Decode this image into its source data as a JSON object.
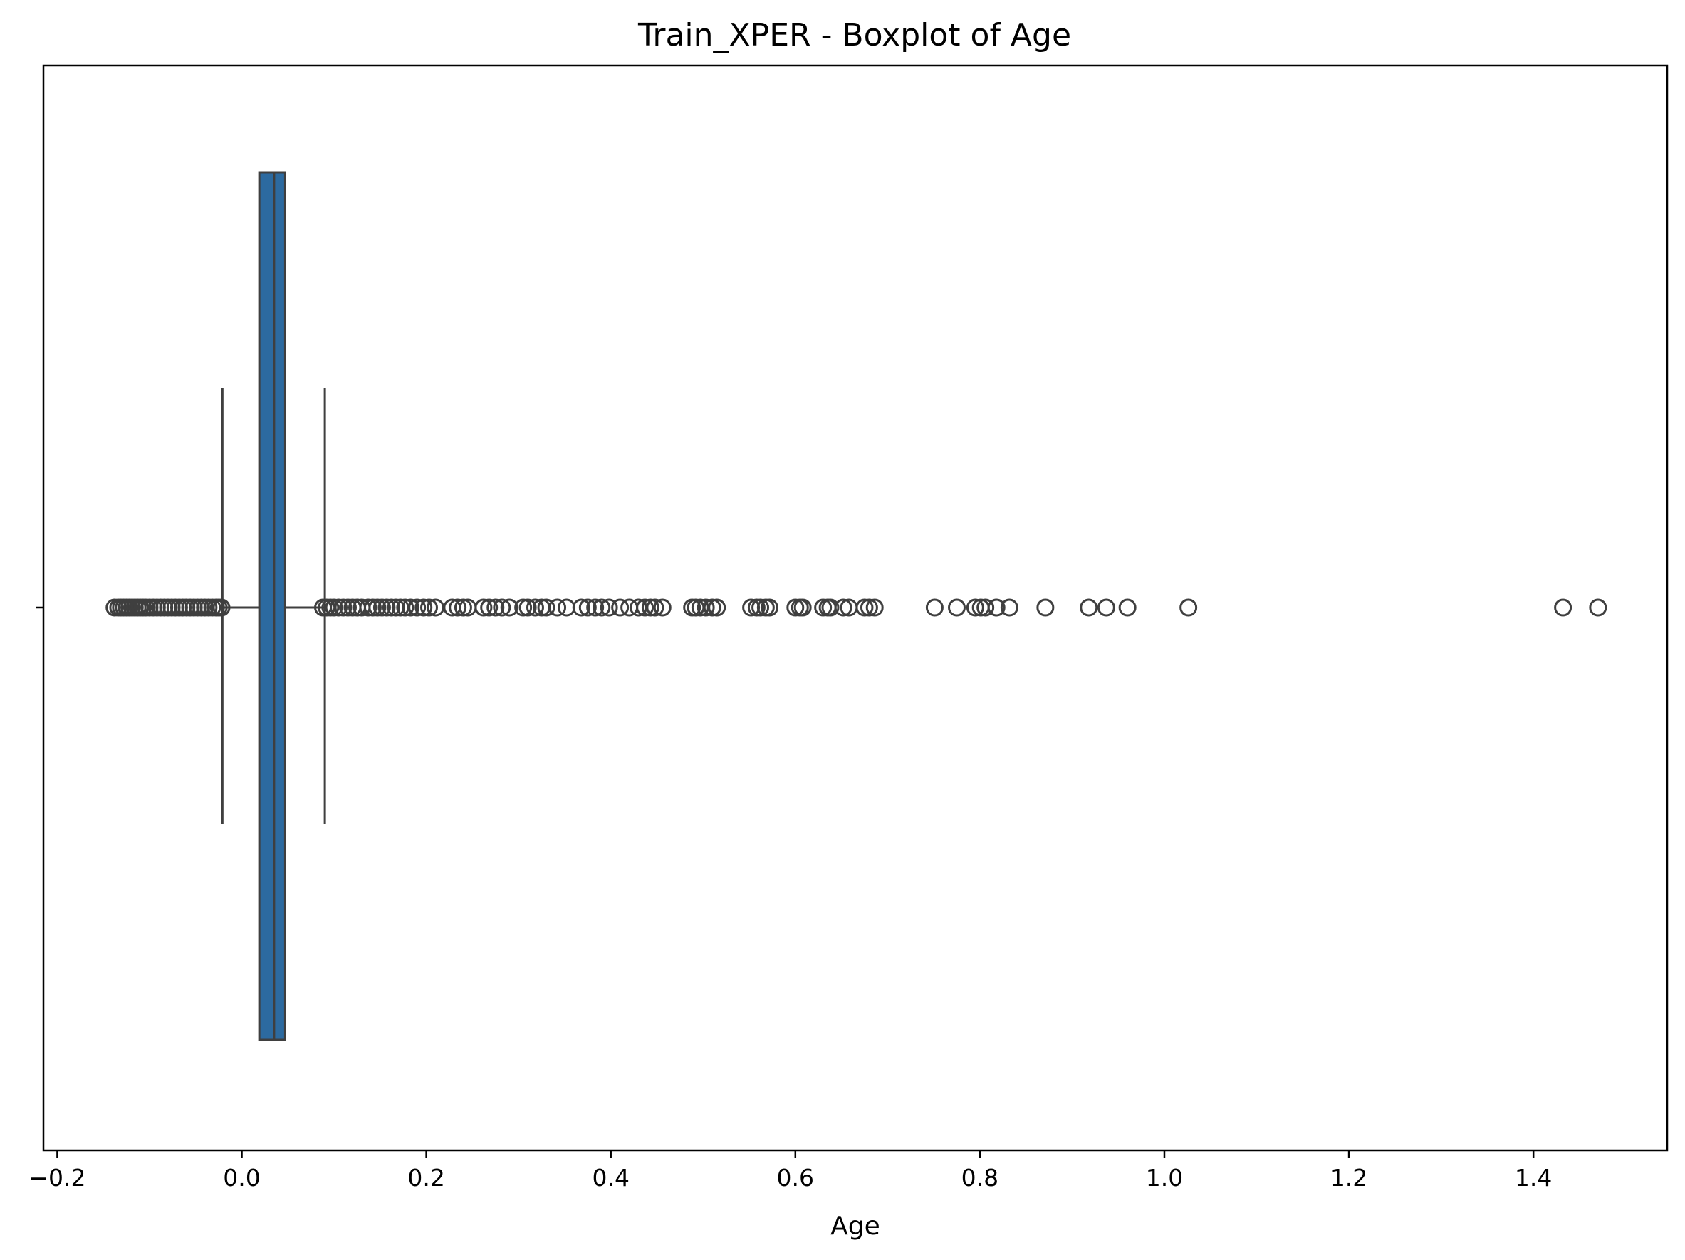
{
  "chart_data": {
    "type": "boxplot",
    "orientation": "horizontal",
    "title": "Train_XPER - Boxplot of Age",
    "xlabel": "Age",
    "ylabel": "",
    "xlim": [
      -0.215,
      1.545
    ],
    "xticks": [
      -0.2,
      0.0,
      0.2,
      0.4,
      0.6,
      0.8,
      1.0,
      1.2,
      1.4
    ],
    "xtick_labels": [
      "−0.2",
      "0.0",
      "0.2",
      "0.4",
      "0.6",
      "0.8",
      "1.0",
      "1.2",
      "1.4"
    ],
    "grid": false,
    "legend": "none",
    "colors": {
      "box_fill": "#2c6aa0",
      "line": "#3f3f3f"
    },
    "boxes": [
      {
        "whisker_low": -0.021,
        "q1": 0.019,
        "median": 0.035,
        "q3": 0.047,
        "whisker_high": 0.09,
        "outliers": [
          -0.138,
          -0.134,
          -0.131,
          -0.128,
          -0.125,
          -0.122,
          -0.119,
          -0.116,
          -0.113,
          -0.11,
          -0.107,
          -0.104,
          -0.1,
          -0.096,
          -0.092,
          -0.088,
          -0.084,
          -0.08,
          -0.076,
          -0.072,
          -0.068,
          -0.064,
          -0.06,
          -0.056,
          -0.052,
          -0.048,
          -0.044,
          -0.04,
          -0.036,
          -0.032,
          -0.028,
          -0.025,
          -0.022,
          0.088,
          0.092,
          0.096,
          0.1,
          0.105,
          0.11,
          0.115,
          0.12,
          0.125,
          0.13,
          0.137,
          0.142,
          0.147,
          0.152,
          0.157,
          0.162,
          0.167,
          0.172,
          0.177,
          0.183,
          0.19,
          0.197,
          0.203,
          0.21,
          0.228,
          0.234,
          0.24,
          0.245,
          0.262,
          0.268,
          0.275,
          0.282,
          0.29,
          0.305,
          0.31,
          0.318,
          0.325,
          0.33,
          0.342,
          0.352,
          0.368,
          0.375,
          0.383,
          0.39,
          0.398,
          0.41,
          0.42,
          0.43,
          0.437,
          0.443,
          0.448,
          0.456,
          0.488,
          0.492,
          0.497,
          0.503,
          0.51,
          0.515,
          0.552,
          0.558,
          0.562,
          0.568,
          0.572,
          0.6,
          0.605,
          0.608,
          0.63,
          0.635,
          0.638,
          0.652,
          0.658,
          0.675,
          0.68,
          0.686,
          0.751,
          0.775,
          0.795,
          0.801,
          0.806,
          0.818,
          0.832,
          0.871,
          0.918,
          0.937,
          0.96,
          1.026,
          1.432,
          1.47
        ]
      }
    ]
  }
}
